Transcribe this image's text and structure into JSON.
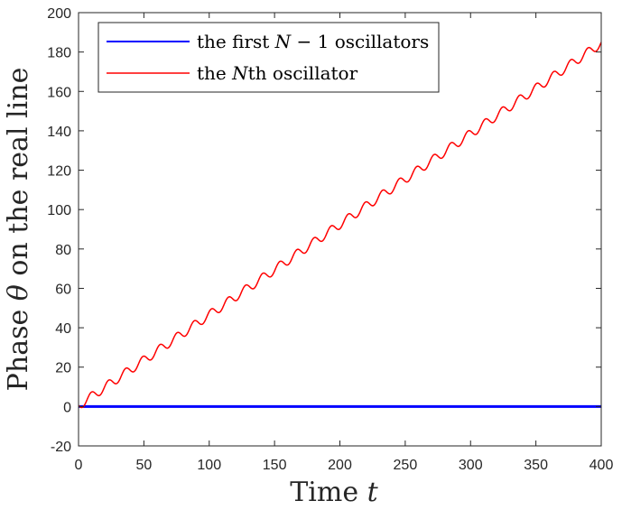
{
  "chart_data": {
    "type": "line",
    "xlabel": "Time t",
    "xlabel_parts": {
      "text": "Time ",
      "var": "t"
    },
    "ylabel": "Phase θ on the real line",
    "ylabel_parts": {
      "pre": "Phase ",
      "var": "θ",
      "post": " on the real line"
    },
    "xlim": [
      0,
      400
    ],
    "ylim": [
      -20,
      200
    ],
    "xticks": [
      0,
      50,
      100,
      150,
      200,
      250,
      300,
      350,
      400
    ],
    "yticks": [
      -20,
      0,
      20,
      40,
      60,
      80,
      100,
      120,
      140,
      160,
      180,
      200
    ],
    "grid": false,
    "legend_position": "top-left",
    "series": [
      {
        "name": "the first N − 1 oscillators",
        "legend_parts": {
          "pre": "the first ",
          "var": "N",
          "post": " − 1 oscillators"
        },
        "color": "#0000ff",
        "x": [
          0,
          50,
          100,
          150,
          200,
          250,
          300,
          350,
          400
        ],
        "y": [
          0,
          0,
          0,
          0,
          0,
          0,
          0,
          0,
          0
        ]
      },
      {
        "name": "the Nth oscillator",
        "legend_parts": {
          "pre": "the ",
          "var": "N",
          "post": "th oscillator"
        },
        "color": "#ff0000",
        "x": [
          0,
          10,
          20,
          50,
          100,
          150,
          200,
          250,
          300,
          350,
          400
        ],
        "y": [
          0.5,
          3,
          9,
          23,
          46,
          69,
          92,
          115,
          138,
          161,
          184.5
        ],
        "slope_per_unit_time": 0.46,
        "step_period": 13.1,
        "step_amplitude": 2.3
      }
    ]
  }
}
